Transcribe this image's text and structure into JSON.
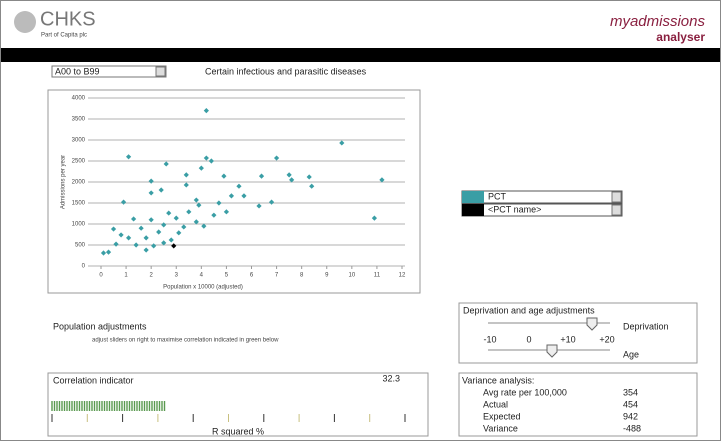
{
  "header": {
    "logo": "CHKS",
    "logo_subtitle": "Part of Capita plc",
    "product": "myadmissions",
    "product_subtitle": "analyser"
  },
  "diagnosis_select": "A00 to B99",
  "diagnosis_name": "Certain infectious and parasitic diseases",
  "chart_data": {
    "type": "scatter",
    "xlabel": "Population x 10000 (adjusted)",
    "ylabel": "Admissions per year",
    "xlim": [
      0,
      12
    ],
    "xticks": [
      0,
      1,
      2,
      3,
      4,
      5,
      6,
      7,
      8,
      9,
      10,
      11,
      12
    ],
    "ylim": [
      0,
      4000
    ],
    "yticks": [
      0,
      500,
      1000,
      1500,
      2000,
      2500,
      3000,
      3500,
      4000
    ],
    "grid": true,
    "series": [
      {
        "name": "PCT",
        "color": "#3a9ea5",
        "x": [
          4.2,
          9.6,
          1.1,
          4.2,
          2.6,
          7.0,
          11.2,
          10.9,
          4.0,
          4.4,
          2.0,
          2.0,
          2.4,
          3.4,
          3.4,
          4.9,
          5.5,
          6.4,
          7.5,
          8.3,
          8.4,
          7.6,
          5.7,
          6.3,
          6.8,
          0.9,
          1.3,
          0.5,
          0.1,
          0.3,
          0.6,
          0.8,
          1.6,
          1.8,
          2.0,
          2.3,
          2.5,
          2.7,
          2.8,
          3.0,
          3.3,
          3.5,
          3.8,
          3.9,
          4.1,
          4.5,
          4.7,
          5.0,
          5.2,
          1.4,
          1.8,
          2.1,
          2.5,
          1.1,
          3.1,
          3.8
        ],
        "values": [
          3700,
          2930,
          2600,
          2570,
          2430,
          2570,
          2050,
          1140,
          2330,
          2500,
          2020,
          1740,
          1810,
          1930,
          2170,
          2140,
          1900,
          2140,
          2170,
          2120,
          1900,
          2050,
          1670,
          1430,
          1520,
          1520,
          1120,
          880,
          310,
          330,
          520,
          740,
          900,
          670,
          1100,
          810,
          980,
          1260,
          620,
          1140,
          930,
          1290,
          1050,
          1450,
          950,
          1210,
          1500,
          1290,
          1670,
          500,
          380,
          480,
          550,
          670,
          790,
          1570
        ]
      },
      {
        "name": "<PCT name>",
        "color": "#000000",
        "x": [
          2.9
        ],
        "values": [
          480
        ]
      }
    ]
  },
  "population_adjustments": {
    "title": "Population adjustments",
    "hint": "adjust sliders on right to maximise correlation indicated in green below"
  },
  "adjustments": {
    "title": "Deprivation and age adjustments",
    "deprivation": "Deprivation",
    "age": "Age",
    "scale": [
      "-10",
      "0",
      "+10",
      "+20"
    ]
  },
  "correlation": {
    "title": "Correlation indicator",
    "value": 32.3,
    "axis_label": "R squared %"
  },
  "variance": {
    "title": "Variance analysis:",
    "rows": [
      [
        "Avg rate per 100,000",
        354
      ],
      [
        "Actual",
        454
      ],
      [
        "Expected",
        942
      ],
      [
        "Variance",
        -488
      ]
    ]
  }
}
